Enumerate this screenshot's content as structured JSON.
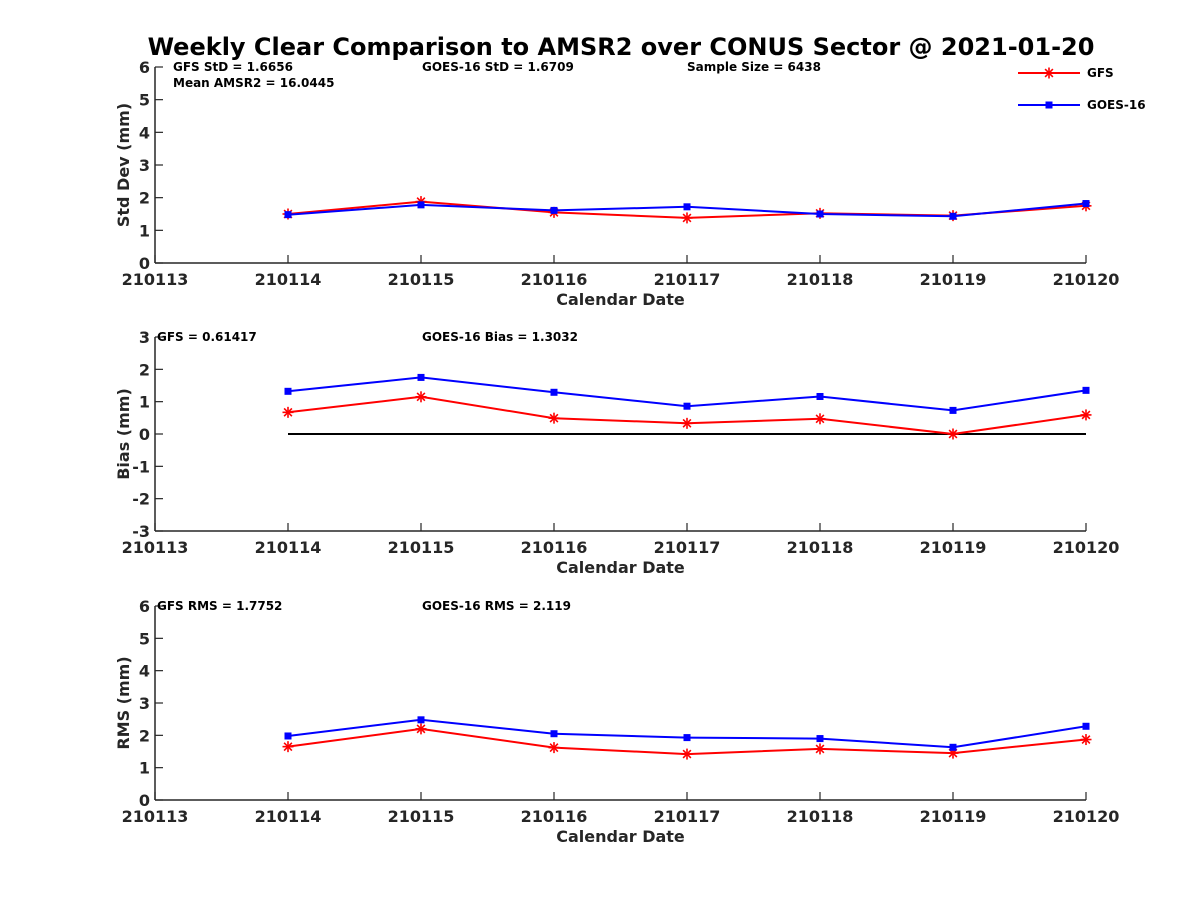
{
  "title": "Weekly Clear Comparison to AMSR2 over CONUS Sector @ 2021-01-20",
  "legend": {
    "placement": "top-right",
    "entries": [
      {
        "name": "GFS",
        "color": "#ff0000",
        "marker": "asterisk"
      },
      {
        "name": "GOES-16",
        "color": "#0000ff",
        "marker": "square"
      }
    ]
  },
  "chart_data": [
    {
      "type": "line",
      "ylabel": "Std Dev (mm)",
      "xlabel": "Calendar Date",
      "x": [
        "210113",
        "210114",
        "210115",
        "210116",
        "210117",
        "210118",
        "210119",
        "210120"
      ],
      "ylim": [
        0,
        6
      ],
      "yticks": [
        "0",
        "1",
        "2",
        "3",
        "4",
        "5",
        "6"
      ],
      "annotations": [
        "GFS StD = 1.6656",
        "GOES-16 StD = 1.6709",
        "Sample Size = 6438",
        "Mean AMSR2 = 16.0445"
      ],
      "series": [
        {
          "name": "GFS",
          "color": "#ff0000",
          "marker": "asterisk",
          "x": [
            "210114",
            "210115",
            "210116",
            "210117",
            "210118",
            "210119",
            "210120"
          ],
          "values": [
            1.5,
            1.88,
            1.55,
            1.38,
            1.52,
            1.45,
            1.75
          ]
        },
        {
          "name": "GOES-16",
          "color": "#0000ff",
          "marker": "square",
          "x": [
            "210114",
            "210115",
            "210116",
            "210117",
            "210118",
            "210119",
            "210120"
          ],
          "values": [
            1.48,
            1.78,
            1.61,
            1.72,
            1.5,
            1.43,
            1.82
          ]
        }
      ]
    },
    {
      "type": "line",
      "ylabel": "Bias (mm)",
      "xlabel": "Calendar Date",
      "x": [
        "210113",
        "210114",
        "210115",
        "210116",
        "210117",
        "210118",
        "210119",
        "210120"
      ],
      "ylim": [
        -3,
        3
      ],
      "yticks": [
        "-3",
        "-2",
        "-1",
        "0",
        "1",
        "2",
        "3"
      ],
      "annotations": [
        "GFS = 0.61417",
        "GOES-16 Bias  = 1.3032"
      ],
      "reference_line": {
        "value": 0,
        "from": "210114",
        "to": "210120",
        "color": "#000000"
      },
      "series": [
        {
          "name": "GFS",
          "color": "#ff0000",
          "marker": "asterisk",
          "x": [
            "210114",
            "210115",
            "210116",
            "210117",
            "210118",
            "210119",
            "210120"
          ],
          "values": [
            0.67,
            1.15,
            0.49,
            0.33,
            0.47,
            0.0,
            0.59
          ]
        },
        {
          "name": "GOES-16",
          "color": "#0000ff",
          "marker": "square",
          "x": [
            "210114",
            "210115",
            "210116",
            "210117",
            "210118",
            "210119",
            "210120"
          ],
          "values": [
            1.32,
            1.75,
            1.29,
            0.86,
            1.16,
            0.73,
            1.35
          ]
        }
      ]
    },
    {
      "type": "line",
      "ylabel": "RMS (mm)",
      "xlabel": "Calendar Date",
      "x": [
        "210113",
        "210114",
        "210115",
        "210116",
        "210117",
        "210118",
        "210119",
        "210120"
      ],
      "ylim": [
        0,
        6
      ],
      "yticks": [
        "0",
        "1",
        "2",
        "3",
        "4",
        "5",
        "6"
      ],
      "annotations": [
        "GFS RMS = 1.7752",
        "GOES-16 RMS = 2.119"
      ],
      "series": [
        {
          "name": "GFS",
          "color": "#ff0000",
          "marker": "asterisk",
          "x": [
            "210114",
            "210115",
            "210116",
            "210117",
            "210118",
            "210119",
            "210120"
          ],
          "values": [
            1.65,
            2.2,
            1.62,
            1.42,
            1.58,
            1.45,
            1.87
          ]
        },
        {
          "name": "GOES-16",
          "color": "#0000ff",
          "marker": "square",
          "x": [
            "210114",
            "210115",
            "210116",
            "210117",
            "210118",
            "210119",
            "210120"
          ],
          "values": [
            1.98,
            2.48,
            2.05,
            1.93,
            1.9,
            1.63,
            2.28
          ]
        }
      ]
    }
  ]
}
